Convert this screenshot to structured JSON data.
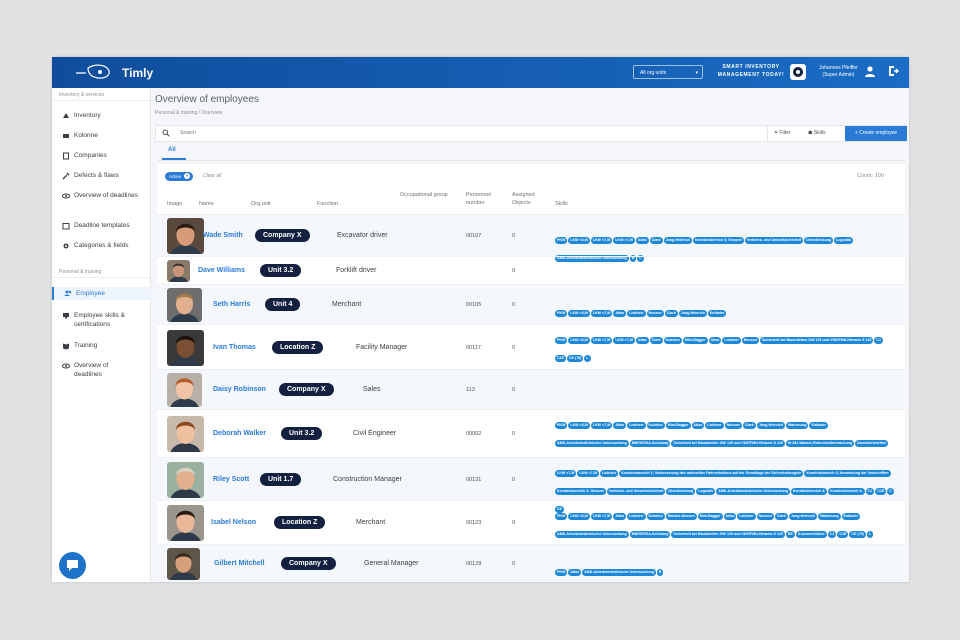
{
  "app": {
    "brand": "Timly",
    "org_select": "All org units",
    "promo": "SMART INVENTORY MANAGEMENT TODAY!",
    "user_name": "Johannes Pfeiffer",
    "user_role": "(Super Admin)"
  },
  "sidebar": {
    "section1": "Inventory & services",
    "items1": [
      {
        "label": "Inventory",
        "icon": "inventory-icon"
      },
      {
        "label": "Kolonne",
        "icon": "kolonne-icon"
      },
      {
        "label": "Companies",
        "icon": "companies-icon"
      },
      {
        "label": "Defects & flaws",
        "icon": "wrench-icon"
      },
      {
        "label": "Overview of deadlines",
        "icon": "eye-icon"
      },
      {
        "label": "Deadline templates",
        "icon": "calendar-icon"
      },
      {
        "label": "Categories & fields",
        "icon": "gear-icon"
      }
    ],
    "section2": "Personal & training",
    "items2": [
      {
        "label": "Employee",
        "icon": "employee-icon"
      },
      {
        "label": "Employee skills & certifications",
        "icon": "skills-icon"
      },
      {
        "label": "Training",
        "icon": "book-icon"
      },
      {
        "label": "Overview of deadlines",
        "icon": "eye-icon"
      }
    ]
  },
  "page": {
    "title": "Overview of employees",
    "breadcrumb": "Personal & training  /  Overview",
    "search_placeholder": "Search",
    "filter_label": "Filter",
    "skills_label": "Skills",
    "create_label": "+ Create employee",
    "tab_all": "All",
    "active_chip": "Active",
    "active_chip_x": "×",
    "clear_all": "Clear all",
    "count": "Count: 100"
  },
  "columns": [
    "Image",
    "Name",
    "Org.unit",
    "Function",
    "Occupational group",
    "Personnel number",
    "Assigned Objects",
    "Skills"
  ],
  "employees": [
    {
      "name": "Wade Smith",
      "unit": "Company X",
      "function": "Excavator driver",
      "pnum": "00107",
      "objects": "0",
      "skills": [
        "PKW",
        "LKW <3,5t",
        "LKW <7,5t",
        "LKW >7,5t",
        "Atlas",
        "Clark",
        "Jung-Heinrich",
        "Kenntnisbereich 3; Gesund",
        "Verkehrs- und Umweltsicherheit",
        "Dienstleistung",
        "Logostik",
        "AMD-Arbeitsmedizinische Untersuchung",
        "B",
        "C"
      ]
    },
    {
      "name": "Dave Williams",
      "unit": "Unit 3.2",
      "function": "Forklift driver",
      "pnum": "",
      "objects": "0",
      "skills": []
    },
    {
      "name": "Seth Harris",
      "unit": "Unit 4",
      "function": "Merchant",
      "pnum": "00105",
      "objects": "0",
      "skills": [
        "PKW",
        "LKW <3,5t",
        "LKW <7,5t",
        "Atlas",
        "Liebherr",
        "Neuson",
        "Clark",
        "Jung-Heinrich",
        "Entlader"
      ]
    },
    {
      "name": "Ivan Thomas",
      "unit": "Location Z",
      "function": "Facility Manager",
      "pnum": "00117",
      "objects": "0",
      "skills": [
        "PKW",
        "LKW <3,5t",
        "LKW <7,5t",
        "LKW >7,5t",
        "Atlas",
        "Clark",
        "Kobelco",
        "Mini-Bagger",
        "Atlas",
        "Liebherr",
        "Neuson",
        "Sicherheit bei Bauarbeiten GW 129 und VDE/FMN-Hinweis S 129",
        "C1",
        "C1E",
        "CE (79)",
        "L"
      ]
    },
    {
      "name": "Daisy Robinson",
      "unit": "Company X",
      "function": "Sales",
      "pnum": "113",
      "objects": "0",
      "skills": []
    },
    {
      "name": "Deborah Walker",
      "unit": "Unit 3.2",
      "function": "Civil Engineer",
      "pnum": "00002",
      "objects": "0",
      "skills": [
        "PKW",
        "LKW <3,5t",
        "LKW <7,5t",
        "Atlas",
        "Liebherr",
        "Kobelco",
        "Mini-Bagger",
        "Atlas",
        "Liebherr",
        "Neuson",
        "Clark",
        "Jung-Heinrich",
        "Walzenzug",
        "Entlader",
        "AMD-Arbeitsmedizinische Untersuchung",
        "MNRS/RSA-Schulung",
        "Sicherheit bei Bauarbeiten GW 129 und VDE/FMN-Hinweis S 129",
        "W 381 Wasser-Rohrnetzüberwachung",
        "Dauerberieselten",
        "Kolonnenführer"
      ]
    },
    {
      "name": "Riley Scott",
      "unit": "Unit 1.7",
      "function": "Construction Manager",
      "pnum": "00131",
      "objects": "0",
      "skills": [
        "LKW <7,5t",
        "LKW >7,5t",
        "Liebherr",
        "Kenntnisbereich 1; Verbesserung des rationellen Fahrverhaltens auf der Grundlage der Sicherheitsregeln",
        "Kenntnisbereich 2; Anwendung der Vorschriften",
        "Kenntnisbereich 3; Gesund",
        "Verkehrs- und Umweltsicherheit",
        "Dienstleistung",
        "Logostik",
        "AMD-Arbeitsmedizinische Untersuchung",
        "Kenntnisbereich 4;",
        "Kenntnisbereich 4;",
        "C1",
        "C1E",
        "C",
        "CE"
      ]
    },
    {
      "name": "Isabel Nelson",
      "unit": "Location Z",
      "function": "Merchant",
      "pnum": "00123",
      "objects": "0",
      "skills": [
        "PKW",
        "LKW <3,5t",
        "LKW <7,5t",
        "Atlas",
        "Liebherr",
        "Kobelco",
        "Wacker-Neuson",
        "Mini-Bagger",
        "Atlas",
        "Liebherr",
        "Neuson",
        "Clark",
        "Jung-Heinrich",
        "Walzenzug",
        "Entlader",
        "AMD-Arbeitsmedizinische Untersuchung",
        "MNRS/RSA-Schulung",
        "Sicherheit bei Bauarbeiten GW 129 und VDE/FMN-Hinweis S 129",
        "BE",
        "Kolonnenführer",
        "C1",
        "C1E",
        "CE (79)",
        "L"
      ]
    },
    {
      "name": "Gilbert Mitchell",
      "unit": "Company X",
      "function": "General Manager",
      "pnum": "00128",
      "objects": "0",
      "skills": [
        "PKW",
        "Atlas",
        "AMD-Arbeitsmedizinische Untersuchung",
        "B"
      ]
    }
  ],
  "colors": {
    "accent": "#2b7bd6",
    "unit_badge": "#13203f",
    "skill_badge": "#1e88d8",
    "topbar": "#1a6cc4"
  }
}
